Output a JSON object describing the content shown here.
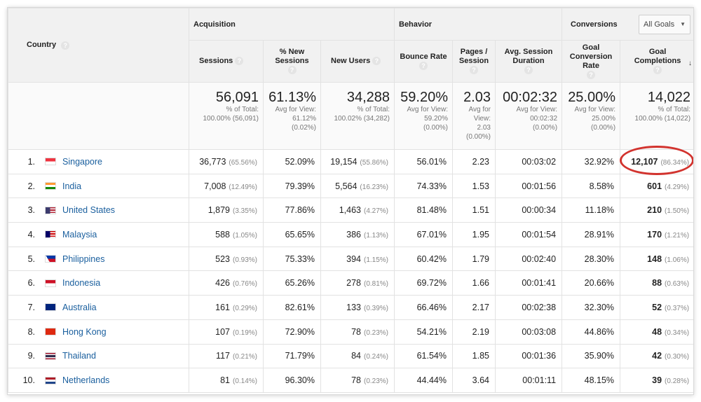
{
  "header": {
    "country_label": "Country",
    "groups": {
      "acquisition": "Acquisition",
      "behavior": "Behavior",
      "conversions": "Conversions"
    },
    "goal_select": "All Goals",
    "columns": {
      "sessions": "Sessions",
      "new_sessions": "% New Sessions",
      "new_users": "New Users",
      "bounce_rate": "Bounce Rate",
      "pages_session": "Pages / Session",
      "avg_duration": "Avg. Session Duration",
      "goal_rate": "Goal Conversion Rate",
      "goal_completions": "Goal Completions"
    },
    "help_glyph": "?"
  },
  "totals": {
    "sessions": {
      "value": "56,091",
      "l1": "% of Total:",
      "l2": "100.00% (56,091)"
    },
    "new_sessions": {
      "value": "61.13%",
      "l1": "Avg for View:",
      "l2": "61.12%",
      "l3": "(0.02%)"
    },
    "new_users": {
      "value": "34,288",
      "l1": "% of Total:",
      "l2": "100.02% (34,282)"
    },
    "bounce_rate": {
      "value": "59.20%",
      "l1": "Avg for View:",
      "l2": "59.20%",
      "l3": "(0.00%)"
    },
    "pages_session": {
      "value": "2.03",
      "l1": "Avg for",
      "l2": "View:",
      "l3": "2.03",
      "l4": "(0.00%)"
    },
    "avg_duration": {
      "value": "00:02:32",
      "l1": "Avg for View:",
      "l2": "00:02:32",
      "l3": "(0.00%)"
    },
    "goal_rate": {
      "value": "25.00%",
      "l1": "Avg for View:",
      "l2": "25.00%",
      "l3": "(0.00%)"
    },
    "goal_completions": {
      "value": "14,022",
      "l1": "% of Total:",
      "l2": "100.00% (14,022)"
    }
  },
  "rows": [
    {
      "idx": "1.",
      "country": "Singapore",
      "flag": "sg-flag-icon",
      "sessions": "36,773",
      "sessions_pct": "(65.56%)",
      "new_sessions": "52.09%",
      "new_users": "19,154",
      "new_users_pct": "(55.86%)",
      "bounce": "56.01%",
      "pages": "2.23",
      "duration": "00:03:02",
      "goal_rate": "32.92%",
      "goal": "12,107",
      "goal_pct": "(86.34%)"
    },
    {
      "idx": "2.",
      "country": "India",
      "flag": "in-flag-icon",
      "sessions": "7,008",
      "sessions_pct": "(12.49%)",
      "new_sessions": "79.39%",
      "new_users": "5,564",
      "new_users_pct": "(16.23%)",
      "bounce": "74.33%",
      "pages": "1.53",
      "duration": "00:01:56",
      "goal_rate": "8.58%",
      "goal": "601",
      "goal_pct": "(4.29%)"
    },
    {
      "idx": "3.",
      "country": "United States",
      "flag": "us-flag-icon",
      "sessions": "1,879",
      "sessions_pct": "(3.35%)",
      "new_sessions": "77.86%",
      "new_users": "1,463",
      "new_users_pct": "(4.27%)",
      "bounce": "81.48%",
      "pages": "1.51",
      "duration": "00:00:34",
      "goal_rate": "11.18%",
      "goal": "210",
      "goal_pct": "(1.50%)"
    },
    {
      "idx": "4.",
      "country": "Malaysia",
      "flag": "my-flag-icon",
      "sessions": "588",
      "sessions_pct": "(1.05%)",
      "new_sessions": "65.65%",
      "new_users": "386",
      "new_users_pct": "(1.13%)",
      "bounce": "67.01%",
      "pages": "1.95",
      "duration": "00:01:54",
      "goal_rate": "28.91%",
      "goal": "170",
      "goal_pct": "(1.21%)"
    },
    {
      "idx": "5.",
      "country": "Philippines",
      "flag": "ph-flag-icon",
      "sessions": "523",
      "sessions_pct": "(0.93%)",
      "new_sessions": "75.33%",
      "new_users": "394",
      "new_users_pct": "(1.15%)",
      "bounce": "60.42%",
      "pages": "1.79",
      "duration": "00:02:40",
      "goal_rate": "28.30%",
      "goal": "148",
      "goal_pct": "(1.06%)"
    },
    {
      "idx": "6.",
      "country": "Indonesia",
      "flag": "id-flag-icon",
      "sessions": "426",
      "sessions_pct": "(0.76%)",
      "new_sessions": "65.26%",
      "new_users": "278",
      "new_users_pct": "(0.81%)",
      "bounce": "69.72%",
      "pages": "1.66",
      "duration": "00:01:41",
      "goal_rate": "20.66%",
      "goal": "88",
      "goal_pct": "(0.63%)"
    },
    {
      "idx": "7.",
      "country": "Australia",
      "flag": "au-flag-icon",
      "sessions": "161",
      "sessions_pct": "(0.29%)",
      "new_sessions": "82.61%",
      "new_users": "133",
      "new_users_pct": "(0.39%)",
      "bounce": "66.46%",
      "pages": "2.17",
      "duration": "00:02:38",
      "goal_rate": "32.30%",
      "goal": "52",
      "goal_pct": "(0.37%)"
    },
    {
      "idx": "8.",
      "country": "Hong Kong",
      "flag": "hk-flag-icon",
      "sessions": "107",
      "sessions_pct": "(0.19%)",
      "new_sessions": "72.90%",
      "new_users": "78",
      "new_users_pct": "(0.23%)",
      "bounce": "54.21%",
      "pages": "2.19",
      "duration": "00:03:08",
      "goal_rate": "44.86%",
      "goal": "48",
      "goal_pct": "(0.34%)"
    },
    {
      "idx": "9.",
      "country": "Thailand",
      "flag": "th-flag-icon",
      "sessions": "117",
      "sessions_pct": "(0.21%)",
      "new_sessions": "71.79%",
      "new_users": "84",
      "new_users_pct": "(0.24%)",
      "bounce": "61.54%",
      "pages": "1.85",
      "duration": "00:01:36",
      "goal_rate": "35.90%",
      "goal": "42",
      "goal_pct": "(0.30%)"
    },
    {
      "idx": "10.",
      "country": "Netherlands",
      "flag": "nl-flag-icon",
      "sessions": "81",
      "sessions_pct": "(0.14%)",
      "new_sessions": "96.30%",
      "new_users": "78",
      "new_users_pct": "(0.23%)",
      "bounce": "44.44%",
      "pages": "3.64",
      "duration": "00:01:11",
      "goal_rate": "48.15%",
      "goal": "39",
      "goal_pct": "(0.28%)"
    }
  ],
  "colors": {
    "link": "#1a5f9e",
    "highlight": "#d2332e",
    "header_bg": "#f1f1f1"
  }
}
